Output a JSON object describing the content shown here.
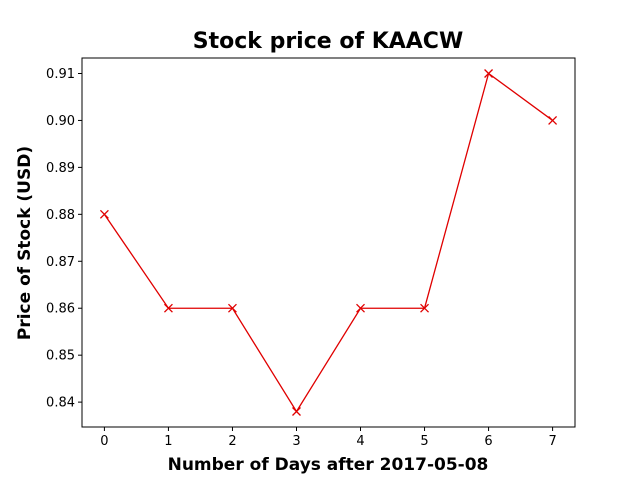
{
  "chart_data": {
    "type": "line",
    "title": "Stock price of KAACW",
    "xlabel": "Number of Days after 2017-05-08",
    "ylabel": "Price of Stock (USD)",
    "x": [
      0,
      1,
      2,
      3,
      4,
      5,
      6,
      7
    ],
    "series": [
      {
        "values": [
          0.88,
          0.86,
          0.86,
          0.838,
          0.86,
          0.86,
          0.91,
          0.9
        ],
        "color": "#e00000",
        "marker": "x"
      }
    ],
    "x_ticks": [
      "0",
      "1",
      "2",
      "3",
      "4",
      "5",
      "6",
      "7"
    ],
    "y_ticks": [
      "0.84",
      "0.85",
      "0.86",
      "0.87",
      "0.88",
      "0.89",
      "0.90",
      "0.91"
    ],
    "xlim": [
      -0.35,
      7.35
    ],
    "ylim": [
      0.8347,
      0.9133
    ],
    "grid": false,
    "legend": "none"
  }
}
